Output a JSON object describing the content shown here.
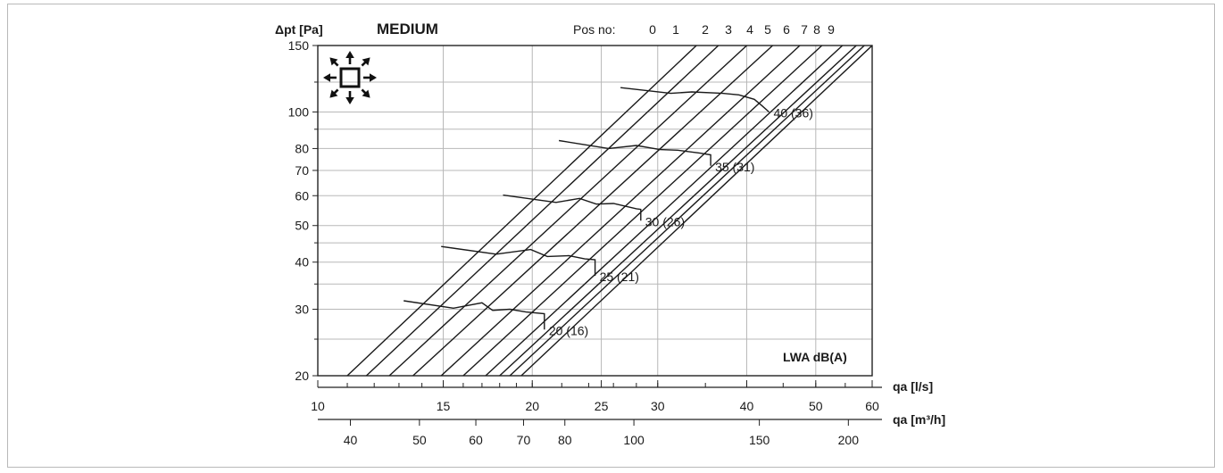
{
  "chart_data": {
    "type": "line",
    "title": "MEDIUM",
    "ylabel": "Δpt [Pa]",
    "yscale": "log",
    "ylim": [
      20,
      150
    ],
    "y_tick_labels": [
      "150",
      "100",
      "80",
      "70",
      "60",
      "50",
      "40",
      "30",
      "20"
    ],
    "y_tick_values": [
      150,
      100,
      80,
      70,
      60,
      50,
      40,
      30,
      20
    ],
    "x_axes": [
      {
        "label": "qa [l/s]",
        "scale": "log",
        "range": [
          10,
          60
        ],
        "tick_labels": [
          "10",
          "15",
          "20",
          "25",
          "30",
          "40",
          "50",
          "60"
        ],
        "tick_values": [
          10,
          15,
          20,
          25,
          30,
          40,
          50,
          60
        ]
      },
      {
        "label": "qa [m³/h]",
        "scale": "log",
        "range": [
          36,
          216
        ],
        "tick_labels": [
          "40",
          "50",
          "60",
          "70",
          "80",
          "100",
          "150",
          "200"
        ],
        "tick_values": [
          40,
          50,
          60,
          70,
          80,
          100,
          150,
          200
        ]
      }
    ],
    "pos_label": "Pos no:",
    "positions": [
      {
        "name": "0",
        "points": [
          [
            11.0,
            20
          ],
          [
            34.0,
            150
          ]
        ]
      },
      {
        "name": "1",
        "points": [
          [
            11.7,
            20
          ],
          [
            36.5,
            150
          ]
        ]
      },
      {
        "name": "2",
        "points": [
          [
            12.6,
            20
          ],
          [
            40.0,
            150
          ]
        ]
      },
      {
        "name": "3",
        "points": [
          [
            13.6,
            20
          ],
          [
            43.5,
            150
          ]
        ]
      },
      {
        "name": "4",
        "points": [
          [
            14.9,
            20
          ],
          [
            47.5,
            150
          ]
        ]
      },
      {
        "name": "5",
        "points": [
          [
            16.0,
            20
          ],
          [
            51.0,
            150
          ]
        ]
      },
      {
        "name": "6",
        "points": [
          [
            17.2,
            20
          ],
          [
            54.5,
            150
          ]
        ]
      },
      {
        "name": "7",
        "points": [
          [
            18.0,
            20
          ],
          [
            57.0,
            150
          ]
        ]
      },
      {
        "name": "8",
        "points": [
          [
            18.6,
            20
          ],
          [
            58.5,
            150
          ]
        ]
      },
      {
        "name": "9",
        "points": [
          [
            19.3,
            20
          ],
          [
            60.0,
            150
          ]
        ]
      }
    ],
    "series_label": "LWA dB(A)",
    "sound_levels": [
      {
        "name": "20 (16)",
        "points": [
          [
            13.2,
            31.6
          ],
          [
            15.5,
            30.2
          ],
          [
            17.0,
            31.2
          ],
          [
            17.6,
            29.8
          ],
          [
            18.6,
            30.0
          ],
          [
            19.6,
            29.5
          ],
          [
            20.8,
            29.2
          ],
          [
            20.8,
            26.5
          ]
        ]
      },
      {
        "name": "25 (21)",
        "points": [
          [
            14.9,
            44.0
          ],
          [
            17.8,
            42.0
          ],
          [
            19.9,
            43.2
          ],
          [
            21.0,
            41.4
          ],
          [
            22.5,
            41.6
          ],
          [
            23.7,
            40.8
          ],
          [
            24.5,
            40.6
          ],
          [
            24.5,
            36.8
          ]
        ]
      },
      {
        "name": "30 (26)",
        "points": [
          [
            18.2,
            60.2
          ],
          [
            21.6,
            57.6
          ],
          [
            23.3,
            59.0
          ],
          [
            24.6,
            57.0
          ],
          [
            26.0,
            57.2
          ],
          [
            28.0,
            55.4
          ],
          [
            28.4,
            55.2
          ],
          [
            28.4,
            51.5
          ]
        ]
      },
      {
        "name": "35 (31)",
        "points": [
          [
            21.8,
            84.0
          ],
          [
            25.6,
            80.0
          ],
          [
            28.0,
            81.5
          ],
          [
            30.2,
            79.5
          ],
          [
            32.0,
            79.2
          ],
          [
            34.4,
            77.8
          ],
          [
            35.6,
            77.0
          ],
          [
            35.6,
            72.0
          ]
        ]
      },
      {
        "name": "40 (36)",
        "points": [
          [
            26.6,
            116.0
          ],
          [
            31.3,
            112.0
          ],
          [
            33.5,
            113.0
          ],
          [
            37.0,
            112.0
          ],
          [
            39.0,
            111.0
          ],
          [
            41.0,
            108.0
          ],
          [
            42.0,
            104.0
          ],
          [
            43.0,
            100.0
          ]
        ]
      }
    ]
  }
}
